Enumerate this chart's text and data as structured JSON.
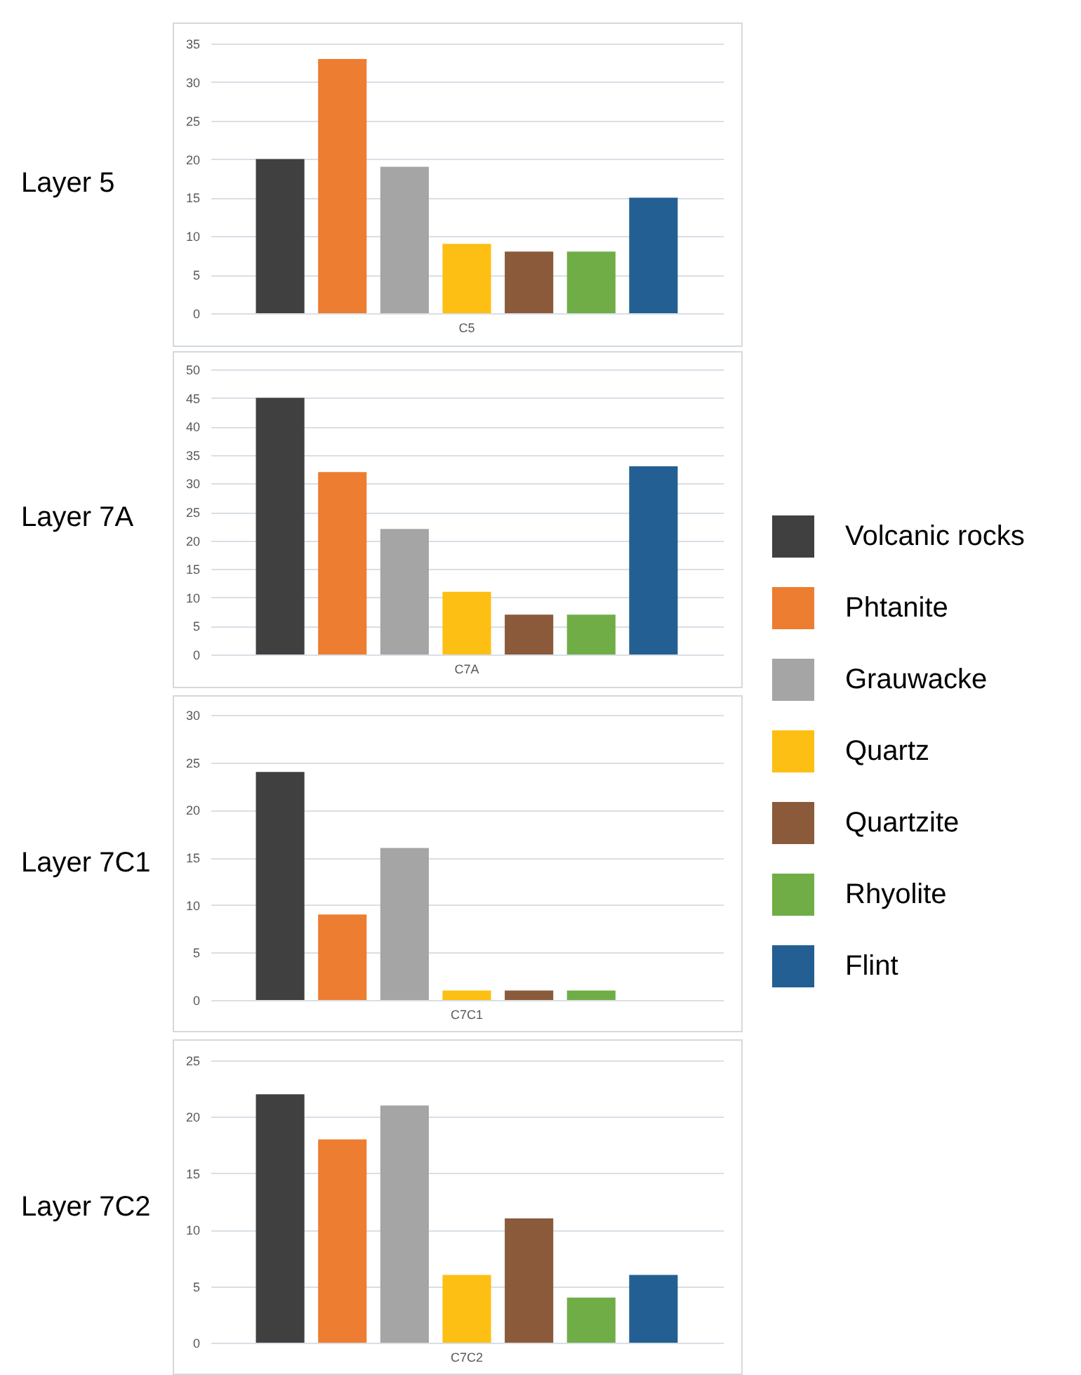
{
  "chart_data": [
    {
      "type": "bar",
      "title": "Layer 5",
      "categories": [
        "C5"
      ],
      "series": [
        {
          "color": "#404040",
          "values": [
            20
          ]
        },
        {
          "color": "#ed7d31",
          "values": [
            33
          ]
        },
        {
          "color": "#a5a5a5",
          "values": [
            19
          ]
        },
        {
          "color": "#fdbf14",
          "values": [
            9
          ]
        },
        {
          "color": "#8a5a3a",
          "values": [
            8
          ]
        },
        {
          "color": "#70ad47",
          "values": [
            8
          ]
        },
        {
          "color": "#235f92",
          "values": [
            15
          ]
        }
      ],
      "ylim": [
        0,
        35
      ],
      "yticks": [
        0,
        5,
        10,
        15,
        20,
        25,
        30,
        35
      ],
      "grid": "y"
    },
    {
      "type": "bar",
      "title": "Layer 7A",
      "categories": [
        "C7A"
      ],
      "series": [
        {
          "name": "Volcanic rocks",
          "color": "#404040",
          "values": [
            45
          ]
        },
        {
          "name": "Phtanite",
          "color": "#ed7d31",
          "values": [
            32
          ]
        },
        {
          "name": "Grauwacke",
          "color": "#a5a5a5",
          "values": [
            22
          ]
        },
        {
          "name": "Quartz",
          "color": "#fdbf14",
          "values": [
            11
          ]
        },
        {
          "name": "Quartzite",
          "color": "#8a5a3a",
          "values": [
            7
          ]
        },
        {
          "name": "Rhyolite",
          "color": "#70ad47",
          "values": [
            7
          ]
        },
        {
          "name": "Flint",
          "color": "#235f92",
          "values": [
            33
          ]
        }
      ],
      "ylim": [
        0,
        50
      ],
      "yticks": [
        0,
        5,
        10,
        15,
        20,
        25,
        30,
        35,
        40,
        45,
        50
      ],
      "grid": "y",
      "legend": "right"
    },
    {
      "type": "bar",
      "title": "Layer 7C1",
      "categories": [
        "C7C1"
      ],
      "series": [
        {
          "color": "#404040",
          "values": [
            24
          ]
        },
        {
          "color": "#ed7d31",
          "values": [
            9
          ]
        },
        {
          "color": "#a5a5a5",
          "values": [
            16
          ]
        },
        {
          "color": "#fdbf14",
          "values": [
            1
          ]
        },
        {
          "color": "#8a5a3a",
          "values": [
            1
          ]
        },
        {
          "color": "#70ad47",
          "values": [
            1
          ]
        },
        {
          "color": "#235f92",
          "values": [
            null
          ]
        }
      ],
      "ylim": [
        0,
        30
      ],
      "yticks": [
        0,
        5,
        10,
        15,
        20,
        25,
        30
      ],
      "grid": "y"
    },
    {
      "type": "bar",
      "title": "Layer 7C2",
      "categories": [
        "C7C2"
      ],
      "series": [
        {
          "color": "#404040",
          "values": [
            22
          ]
        },
        {
          "color": "#ed7d31",
          "values": [
            18
          ]
        },
        {
          "color": "#a5a5a5",
          "values": [
            21
          ]
        },
        {
          "color": "#fdbf14",
          "values": [
            6
          ]
        },
        {
          "color": "#8a5a3a",
          "values": [
            11
          ]
        },
        {
          "color": "#70ad47",
          "values": [
            4
          ]
        },
        {
          "color": "#235f92",
          "values": [
            6
          ]
        }
      ],
      "ylim": [
        0,
        25
      ],
      "yticks": [
        0,
        5,
        10,
        15,
        20,
        25
      ],
      "grid": "y"
    }
  ]
}
